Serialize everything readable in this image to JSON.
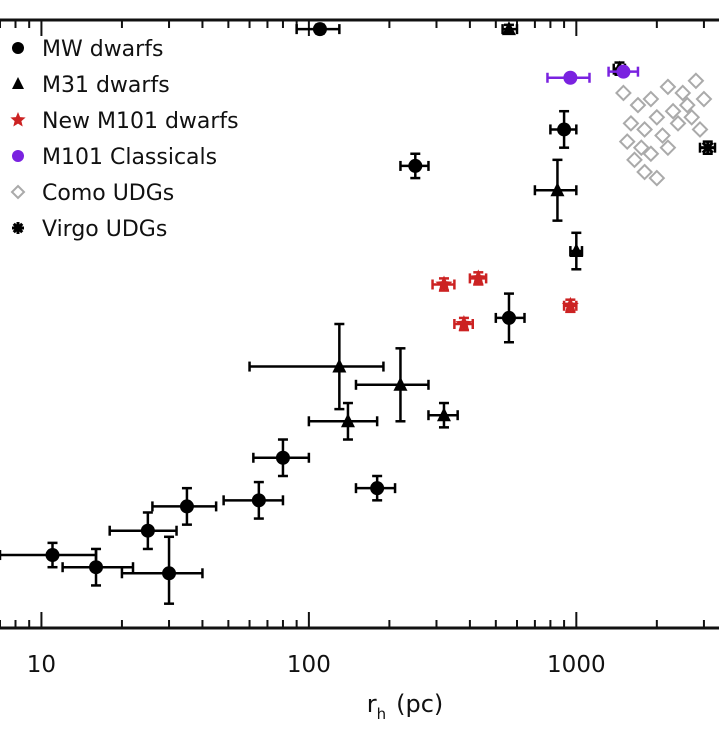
{
  "chart_data": {
    "type": "scatter",
    "title": "",
    "xlabel": "r",
    "xlabel_subscript": "h",
    "xlabel_unit": "(pc)",
    "ylabel": "",
    "xscale": "log",
    "xlim": [
      7,
      3300
    ],
    "ylim": [
      0,
      1
    ],
    "grid": false,
    "legend_position": "top-left",
    "x_ticks": [
      {
        "value": 10,
        "label": "10"
      },
      {
        "value": 100,
        "label": "100"
      },
      {
        "value": 1000,
        "label": "1000"
      }
    ],
    "series": [
      {
        "name": "MW dwarfs",
        "marker": "circle",
        "color": "#000000",
        "points": [
          {
            "x": 110,
            "y": 0.985,
            "xerr": [
              90,
              130
            ],
            "yerr": [
              0.978,
              0.992
            ]
          },
          {
            "x": 11,
            "y": 0.12,
            "xerr": [
              7,
              16
            ],
            "yerr": [
              0.1,
              0.14
            ]
          },
          {
            "x": 16,
            "y": 0.1,
            "xerr": [
              12,
              22
            ],
            "yerr": [
              0.07,
              0.13
            ]
          },
          {
            "x": 30,
            "y": 0.09,
            "xerr": [
              20,
              40
            ],
            "yerr": [
              0.04,
              0.15
            ]
          },
          {
            "x": 25,
            "y": 0.16,
            "xerr": [
              18,
              32
            ],
            "yerr": [
              0.13,
              0.19
            ]
          },
          {
            "x": 35,
            "y": 0.2,
            "xerr": [
              26,
              45
            ],
            "yerr": [
              0.17,
              0.23
            ]
          },
          {
            "x": 65,
            "y": 0.21,
            "xerr": [
              48,
              80
            ],
            "yerr": [
              0.18,
              0.24
            ]
          },
          {
            "x": 80,
            "y": 0.28,
            "xerr": [
              62,
              100
            ],
            "yerr": [
              0.25,
              0.31
            ]
          },
          {
            "x": 180,
            "y": 0.23,
            "xerr": [
              150,
              210
            ],
            "yerr": [
              0.21,
              0.25
            ]
          },
          {
            "x": 560,
            "y": 0.51,
            "xerr": [
              500,
              640
            ],
            "yerr": [
              0.47,
              0.55
            ]
          },
          {
            "x": 900,
            "y": 0.82,
            "xerr": [
              800,
              1000
            ],
            "yerr": [
              0.79,
              0.85
            ]
          },
          {
            "x": 250,
            "y": 0.76,
            "xerr": [
              220,
              280
            ],
            "yerr": [
              0.74,
              0.78
            ]
          }
        ]
      },
      {
        "name": "M31 dwarfs",
        "marker": "triangle",
        "color": "#000000",
        "points": [
          {
            "x": 560,
            "y": 0.985,
            "xerr": [
              530,
              600
            ],
            "yerr": [
              0.978,
              0.992
            ]
          },
          {
            "x": 1450,
            "y": 0.92,
            "xerr": [
              1380,
              1520
            ],
            "yerr": [
              0.91,
              0.93
            ]
          },
          {
            "x": 130,
            "y": 0.43,
            "xerr": [
              60,
              190
            ],
            "yerr": [
              0.36,
              0.5
            ]
          },
          {
            "x": 140,
            "y": 0.34,
            "xerr": [
              100,
              180
            ],
            "yerr": [
              0.31,
              0.37
            ]
          },
          {
            "x": 220,
            "y": 0.4,
            "xerr": [
              150,
              280
            ],
            "yerr": [
              0.34,
              0.46
            ]
          },
          {
            "x": 320,
            "y": 0.35,
            "xerr": [
              280,
              360
            ],
            "yerr": [
              0.33,
              0.37
            ]
          },
          {
            "x": 850,
            "y": 0.72,
            "xerr": [
              700,
              1000
            ],
            "yerr": [
              0.67,
              0.77
            ]
          },
          {
            "x": 1000,
            "y": 0.62,
            "xerr": [
              950,
              1050
            ],
            "yerr": [
              0.59,
              0.65
            ]
          }
        ]
      },
      {
        "name": "New M101 dwarfs",
        "marker": "star",
        "color": "#cc2222",
        "points": [
          {
            "x": 320,
            "y": 0.565,
            "xerr": [
              290,
              350
            ],
            "yerr": [
              0.555,
              0.575
            ]
          },
          {
            "x": 430,
            "y": 0.575,
            "xerr": [
              400,
              460
            ],
            "yerr": [
              0.565,
              0.585
            ]
          },
          {
            "x": 380,
            "y": 0.5,
            "xerr": [
              350,
              410
            ],
            "yerr": [
              0.49,
              0.51
            ]
          },
          {
            "x": 950,
            "y": 0.53,
            "xerr": [
              900,
              1000
            ],
            "yerr": [
              0.52,
              0.54
            ]
          }
        ]
      },
      {
        "name": "M101 Classicals",
        "marker": "circle",
        "color": "#7a22e0",
        "points": [
          {
            "x": 950,
            "y": 0.905,
            "xerr": [
              780,
              1120
            ],
            "yerr": [
              0.905,
              0.905
            ]
          },
          {
            "x": 1500,
            "y": 0.915,
            "xerr": [
              1320,
              1700
            ],
            "yerr": [
              0.915,
              0.915
            ]
          }
        ]
      },
      {
        "name": "Como UDGs",
        "marker": "diamond-open",
        "color": "#aaaaaa",
        "points": [
          {
            "x": 1500,
            "y": 0.88
          },
          {
            "x": 1700,
            "y": 0.86
          },
          {
            "x": 1900,
            "y": 0.87
          },
          {
            "x": 2200,
            "y": 0.89
          },
          {
            "x": 2500,
            "y": 0.88
          },
          {
            "x": 2800,
            "y": 0.9
          },
          {
            "x": 1600,
            "y": 0.83
          },
          {
            "x": 1800,
            "y": 0.82
          },
          {
            "x": 2000,
            "y": 0.84
          },
          {
            "x": 2300,
            "y": 0.85
          },
          {
            "x": 2600,
            "y": 0.86
          },
          {
            "x": 3000,
            "y": 0.87
          },
          {
            "x": 1550,
            "y": 0.8
          },
          {
            "x": 1750,
            "y": 0.79
          },
          {
            "x": 2100,
            "y": 0.81
          },
          {
            "x": 2400,
            "y": 0.83
          },
          {
            "x": 2700,
            "y": 0.84
          },
          {
            "x": 1650,
            "y": 0.77
          },
          {
            "x": 1900,
            "y": 0.78
          },
          {
            "x": 2200,
            "y": 0.79
          },
          {
            "x": 2900,
            "y": 0.82
          },
          {
            "x": 1800,
            "y": 0.75
          },
          {
            "x": 2000,
            "y": 0.74
          }
        ]
      },
      {
        "name": "Virgo UDGs",
        "marker": "asterisk",
        "color": "#000000",
        "points": [
          {
            "x": 3100,
            "y": 0.79,
            "xerr": [
              2900,
              3300
            ],
            "yerr": [
              0.78,
              0.8
            ]
          }
        ]
      }
    ]
  }
}
